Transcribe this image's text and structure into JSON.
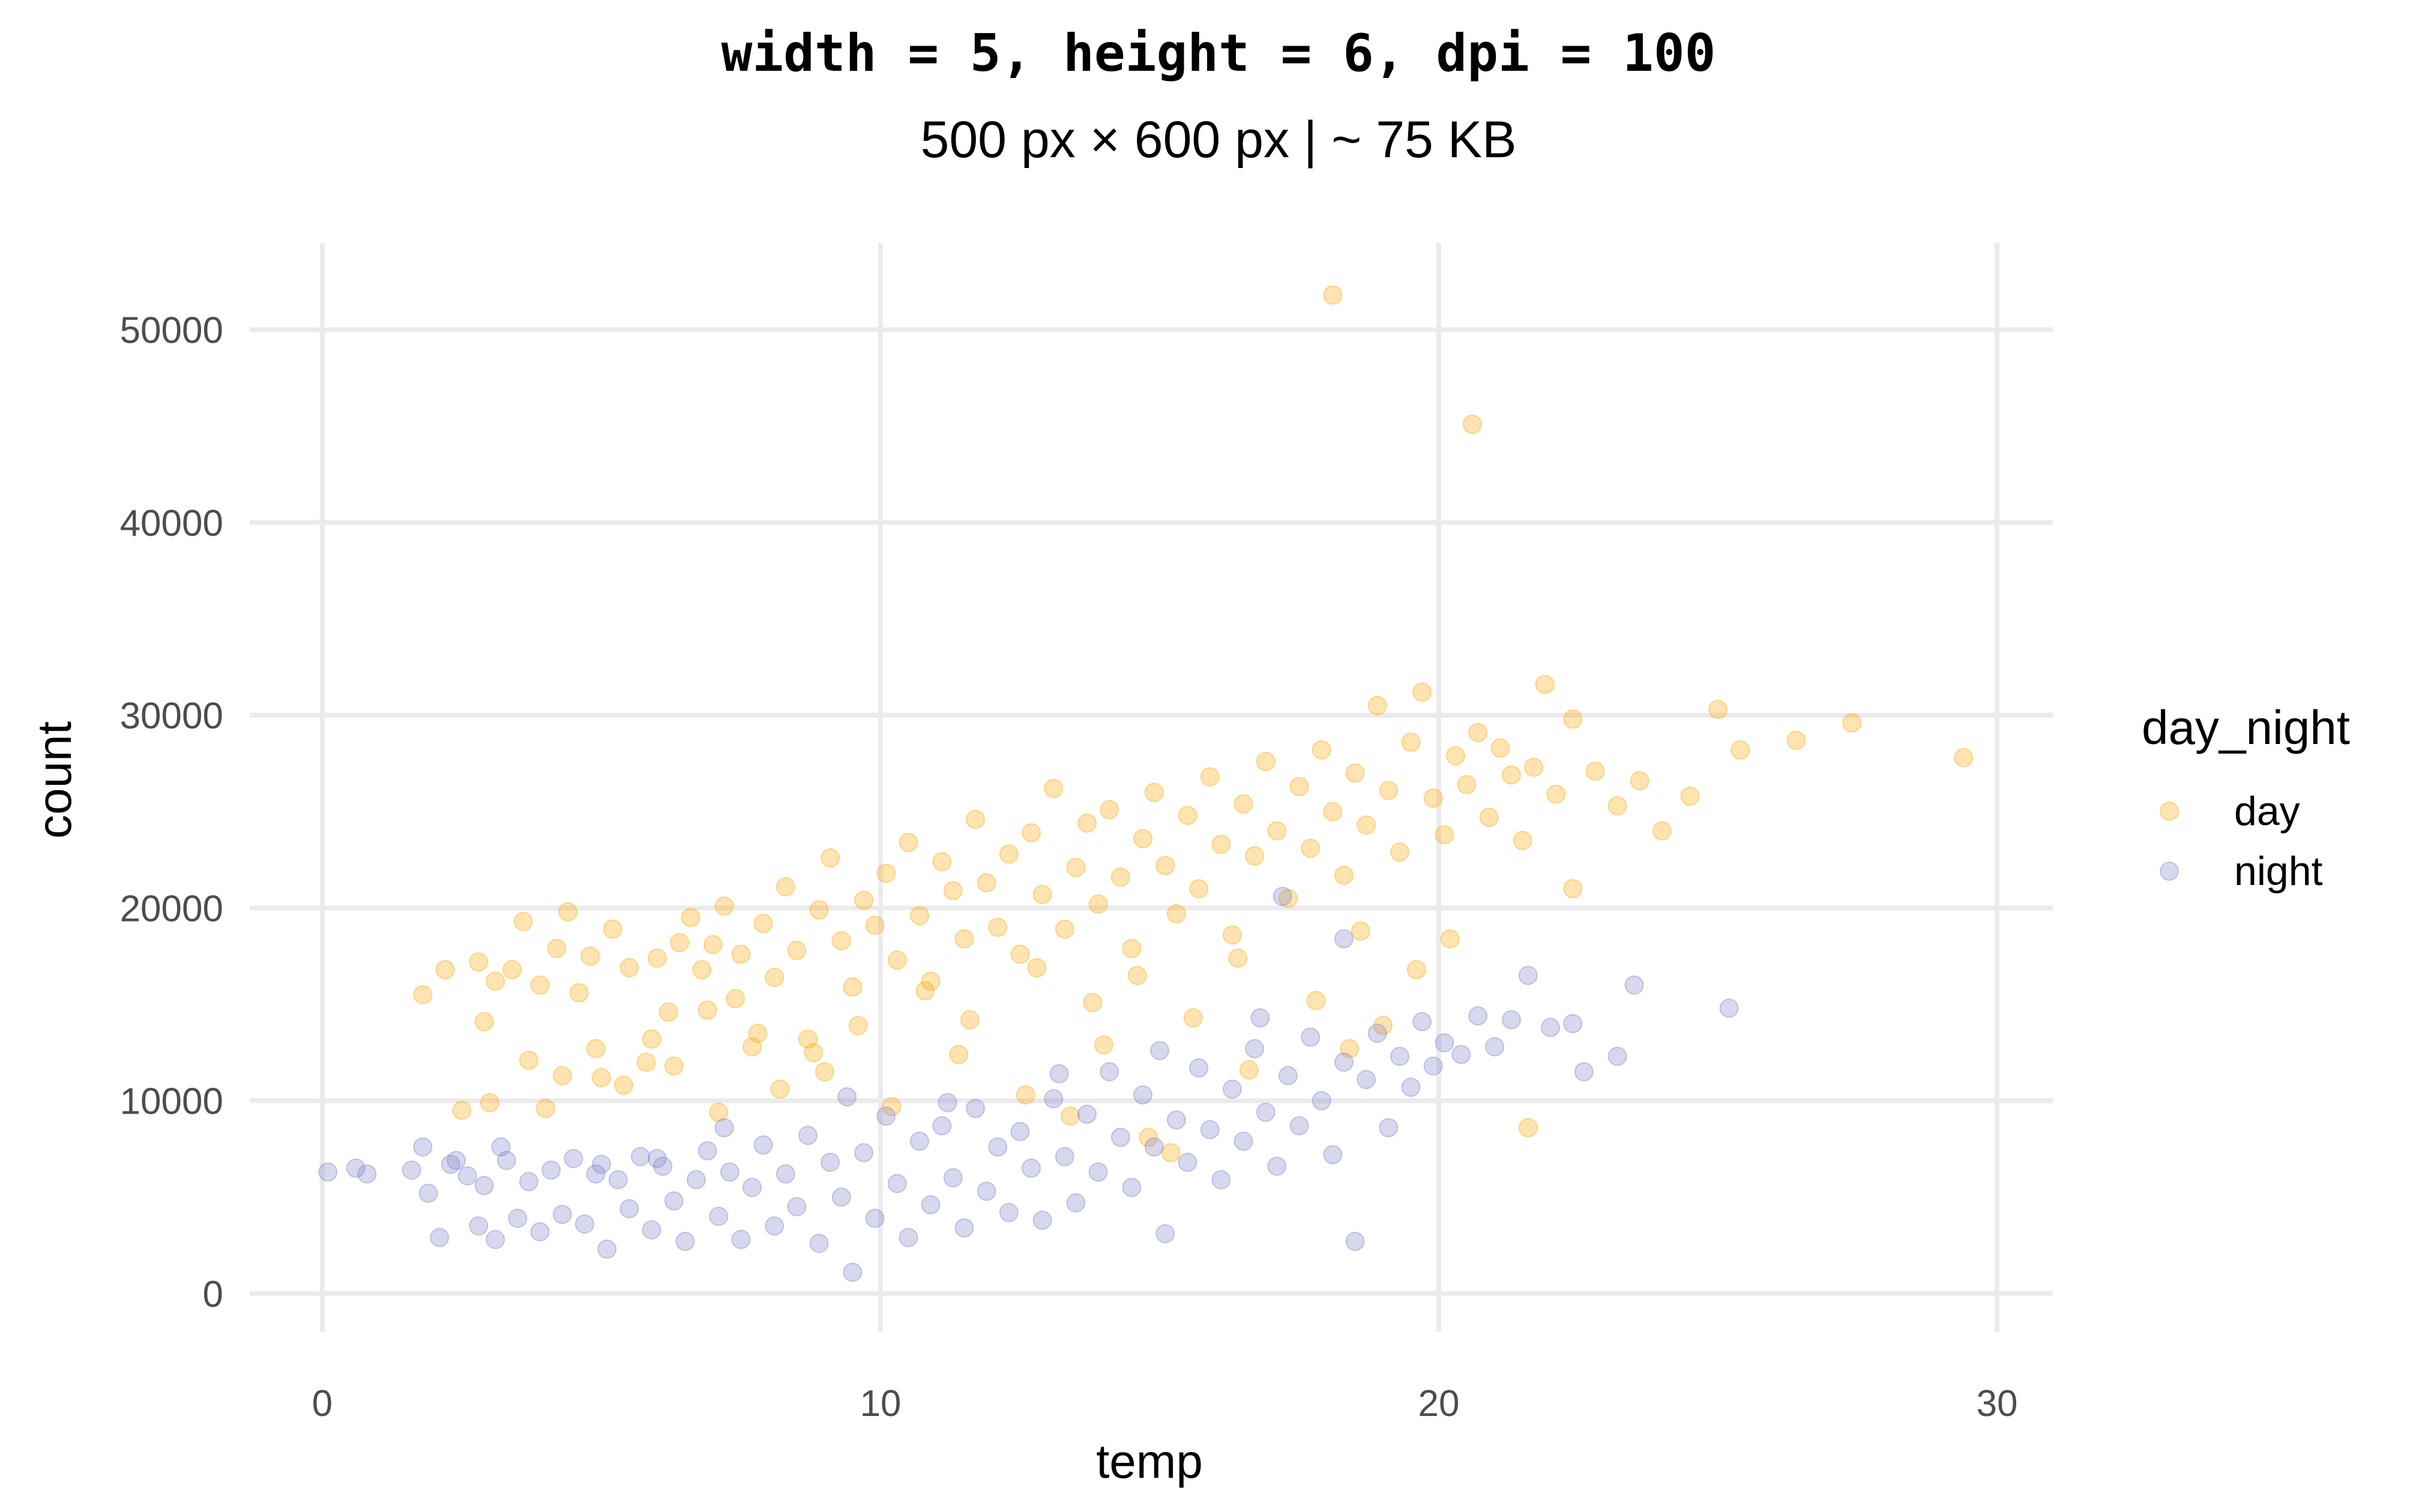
{
  "chart_data": {
    "type": "scatter",
    "title": "width = 5, height = 6, dpi = 100",
    "subtitle": "500 px × 600 px  |  ~ 75 KB",
    "xlabel": "temp",
    "ylabel": "count",
    "xlim": [
      -1.3,
      31
    ],
    "ylim": [
      -2000,
      54500
    ],
    "x_ticks": [
      0,
      10,
      20,
      30
    ],
    "y_ticks": [
      0,
      10000,
      20000,
      30000,
      40000,
      50000
    ],
    "grid": true,
    "legend": {
      "title": "day_night",
      "position": "right",
      "entries": [
        "day",
        "night"
      ]
    },
    "colors": {
      "day": "#FFA500",
      "night": "#7B7FC8"
    },
    "point_alpha": 0.3,
    "series": [
      {
        "name": "day",
        "color": "#FFA500",
        "points": [
          [
            1.8,
            15500
          ],
          [
            2.2,
            16800
          ],
          [
            2.5,
            9500
          ],
          [
            2.8,
            17200
          ],
          [
            2.9,
            14100
          ],
          [
            3.1,
            16200
          ],
          [
            3.4,
            16800
          ],
          [
            3.6,
            19300
          ],
          [
            3.9,
            16000
          ],
          [
            4.2,
            17900
          ],
          [
            4.4,
            19800
          ],
          [
            4.6,
            15600
          ],
          [
            4.8,
            17500
          ],
          [
            5.0,
            11200
          ],
          [
            5.2,
            18900
          ],
          [
            5.5,
            16900
          ],
          [
            5.8,
            12000
          ],
          [
            6.0,
            17400
          ],
          [
            6.2,
            14600
          ],
          [
            6.4,
            18200
          ],
          [
            6.6,
            19500
          ],
          [
            6.8,
            16800
          ],
          [
            7.0,
            18100
          ],
          [
            7.2,
            20100
          ],
          [
            7.4,
            15300
          ],
          [
            7.5,
            17600
          ],
          [
            7.7,
            12800
          ],
          [
            7.9,
            19200
          ],
          [
            8.1,
            16400
          ],
          [
            8.3,
            21100
          ],
          [
            8.5,
            17800
          ],
          [
            8.7,
            13200
          ],
          [
            8.9,
            19900
          ],
          [
            9.1,
            22600
          ],
          [
            9.3,
            18300
          ],
          [
            9.5,
            15900
          ],
          [
            9.7,
            20400
          ],
          [
            9.9,
            19100
          ],
          [
            10.1,
            21800
          ],
          [
            10.3,
            17300
          ],
          [
            10.5,
            23400
          ],
          [
            10.7,
            19600
          ],
          [
            10.9,
            16200
          ],
          [
            11.1,
            22400
          ],
          [
            11.3,
            20900
          ],
          [
            11.5,
            18400
          ],
          [
            11.7,
            24600
          ],
          [
            11.9,
            21300
          ],
          [
            12.1,
            19000
          ],
          [
            12.3,
            22800
          ],
          [
            12.5,
            17600
          ],
          [
            12.7,
            23900
          ],
          [
            12.9,
            20700
          ],
          [
            13.1,
            26200
          ],
          [
            13.3,
            18900
          ],
          [
            13.5,
            22100
          ],
          [
            13.7,
            24400
          ],
          [
            13.9,
            20200
          ],
          [
            14.1,
            25100
          ],
          [
            14.3,
            21600
          ],
          [
            14.5,
            17900
          ],
          [
            14.7,
            23600
          ],
          [
            14.9,
            26000
          ],
          [
            15.1,
            22200
          ],
          [
            15.3,
            19700
          ],
          [
            15.5,
            24800
          ],
          [
            15.7,
            21000
          ],
          [
            15.9,
            26800
          ],
          [
            16.1,
            23300
          ],
          [
            16.3,
            18600
          ],
          [
            16.5,
            25400
          ],
          [
            16.7,
            22700
          ],
          [
            16.9,
            27600
          ],
          [
            17.1,
            24000
          ],
          [
            17.3,
            20500
          ],
          [
            17.5,
            26300
          ],
          [
            17.7,
            23100
          ],
          [
            17.9,
            28200
          ],
          [
            18.1,
            25000
          ],
          [
            18.3,
            21700
          ],
          [
            18.5,
            27000
          ],
          [
            18.7,
            24300
          ],
          [
            18.9,
            30500
          ],
          [
            19.1,
            26100
          ],
          [
            19.3,
            22900
          ],
          [
            19.5,
            28600
          ],
          [
            19.7,
            31200
          ],
          [
            19.9,
            25700
          ],
          [
            20.1,
            23800
          ],
          [
            20.3,
            27900
          ],
          [
            20.5,
            26400
          ],
          [
            20.7,
            29100
          ],
          [
            20.9,
            24700
          ],
          [
            21.1,
            28300
          ],
          [
            21.3,
            26900
          ],
          [
            21.5,
            23500
          ],
          [
            21.7,
            27300
          ],
          [
            21.9,
            31600
          ],
          [
            22.1,
            25900
          ],
          [
            22.4,
            29800
          ],
          [
            22.8,
            27100
          ],
          [
            23.2,
            25300
          ],
          [
            23.6,
            26600
          ],
          [
            24.0,
            24000
          ],
          [
            24.5,
            25800
          ],
          [
            25.0,
            30300
          ],
          [
            25.4,
            28200
          ],
          [
            26.4,
            28700
          ],
          [
            27.4,
            29600
          ],
          [
            29.4,
            27800
          ],
          [
            3.0,
            9900
          ],
          [
            4.0,
            9600
          ],
          [
            5.4,
            10800
          ],
          [
            6.3,
            11800
          ],
          [
            7.1,
            9400
          ],
          [
            8.2,
            10600
          ],
          [
            9.0,
            11500
          ],
          [
            10.2,
            9700
          ],
          [
            11.4,
            12400
          ],
          [
            12.6,
            10300
          ],
          [
            13.4,
            9200
          ],
          [
            14.0,
            12900
          ],
          [
            14.8,
            8100
          ],
          [
            15.2,
            7300
          ],
          [
            16.6,
            11600
          ],
          [
            18.4,
            12700
          ],
          [
            19.0,
            13900
          ],
          [
            21.6,
            8600
          ],
          [
            22.4,
            21000
          ],
          [
            20.2,
            18400
          ],
          [
            19.6,
            16800
          ],
          [
            18.6,
            18800
          ],
          [
            17.8,
            15200
          ],
          [
            16.4,
            17400
          ],
          [
            15.6,
            14300
          ],
          [
            14.6,
            16500
          ],
          [
            13.8,
            15100
          ],
          [
            12.8,
            16900
          ],
          [
            11.6,
            14200
          ],
          [
            10.8,
            15700
          ],
          [
            9.6,
            13900
          ],
          [
            8.8,
            12500
          ],
          [
            7.8,
            13500
          ],
          [
            6.9,
            14700
          ],
          [
            5.9,
            13200
          ],
          [
            4.9,
            12700
          ],
          [
            4.3,
            11300
          ],
          [
            3.7,
            12100
          ],
          [
            18.1,
            51800
          ],
          [
            20.6,
            45100
          ]
        ]
      },
      {
        "name": "night",
        "color": "#7B7FC8",
        "points": [
          [
            0.1,
            6300
          ],
          [
            0.6,
            6500
          ],
          [
            0.8,
            6200
          ],
          [
            1.6,
            6400
          ],
          [
            1.8,
            7600
          ],
          [
            1.9,
            5200
          ],
          [
            2.1,
            2900
          ],
          [
            2.3,
            6700
          ],
          [
            2.6,
            6100
          ],
          [
            2.8,
            3500
          ],
          [
            2.9,
            5600
          ],
          [
            3.1,
            2800
          ],
          [
            3.3,
            6900
          ],
          [
            3.5,
            3900
          ],
          [
            3.7,
            5800
          ],
          [
            3.9,
            3200
          ],
          [
            4.1,
            6400
          ],
          [
            4.3,
            4100
          ],
          [
            4.5,
            7000
          ],
          [
            4.7,
            3600
          ],
          [
            4.9,
            6200
          ],
          [
            5.1,
            2300
          ],
          [
            5.3,
            5900
          ],
          [
            5.5,
            4400
          ],
          [
            5.7,
            7100
          ],
          [
            5.9,
            3300
          ],
          [
            6.1,
            6600
          ],
          [
            6.3,
            4800
          ],
          [
            6.5,
            2700
          ],
          [
            6.7,
            5900
          ],
          [
            6.9,
            7400
          ],
          [
            7.1,
            4000
          ],
          [
            7.3,
            6300
          ],
          [
            7.5,
            2800
          ],
          [
            7.7,
            5500
          ],
          [
            7.9,
            7700
          ],
          [
            8.1,
            3500
          ],
          [
            8.3,
            6200
          ],
          [
            8.5,
            4500
          ],
          [
            8.7,
            8200
          ],
          [
            8.9,
            2600
          ],
          [
            9.1,
            6800
          ],
          [
            9.3,
            5000
          ],
          [
            9.5,
            1100
          ],
          [
            9.7,
            7300
          ],
          [
            9.9,
            3900
          ],
          [
            10.1,
            9200
          ],
          [
            10.3,
            5700
          ],
          [
            10.5,
            2900
          ],
          [
            10.7,
            7900
          ],
          [
            10.9,
            4600
          ],
          [
            11.1,
            8700
          ],
          [
            11.3,
            6000
          ],
          [
            11.5,
            3400
          ],
          [
            11.7,
            9600
          ],
          [
            11.9,
            5300
          ],
          [
            12.1,
            7600
          ],
          [
            12.3,
            4200
          ],
          [
            12.5,
            8400
          ],
          [
            12.7,
            6500
          ],
          [
            12.9,
            3800
          ],
          [
            13.1,
            10100
          ],
          [
            13.3,
            7100
          ],
          [
            13.5,
            4700
          ],
          [
            13.7,
            9300
          ],
          [
            13.9,
            6300
          ],
          [
            14.1,
            11500
          ],
          [
            14.3,
            8100
          ],
          [
            14.5,
            5500
          ],
          [
            14.7,
            10300
          ],
          [
            14.9,
            7600
          ],
          [
            15.1,
            3100
          ],
          [
            15.3,
            9000
          ],
          [
            15.5,
            6800
          ],
          [
            15.7,
            11700
          ],
          [
            15.9,
            8500
          ],
          [
            16.1,
            5900
          ],
          [
            16.3,
            10600
          ],
          [
            16.5,
            7900
          ],
          [
            16.7,
            12700
          ],
          [
            16.9,
            9400
          ],
          [
            17.1,
            6600
          ],
          [
            17.3,
            11300
          ],
          [
            17.5,
            8700
          ],
          [
            17.7,
            13300
          ],
          [
            17.9,
            10000
          ],
          [
            18.1,
            7200
          ],
          [
            18.3,
            12000
          ],
          [
            18.5,
            2700
          ],
          [
            18.7,
            11100
          ],
          [
            18.9,
            13500
          ],
          [
            19.1,
            8600
          ],
          [
            19.3,
            12300
          ],
          [
            19.5,
            10700
          ],
          [
            19.7,
            14100
          ],
          [
            19.9,
            11800
          ],
          [
            20.1,
            13000
          ],
          [
            20.4,
            12400
          ],
          [
            20.7,
            14400
          ],
          [
            21.0,
            12800
          ],
          [
            21.3,
            14200
          ],
          [
            21.6,
            16500
          ],
          [
            22.0,
            13800
          ],
          [
            22.4,
            14000
          ],
          [
            22.6,
            11500
          ],
          [
            23.2,
            12300
          ],
          [
            23.5,
            16000
          ],
          [
            25.2,
            14800
          ],
          [
            17.2,
            20600
          ],
          [
            18.3,
            18400
          ],
          [
            3.2,
            7600
          ],
          [
            5.0,
            6700
          ],
          [
            7.2,
            8600
          ],
          [
            9.4,
            10200
          ],
          [
            11.2,
            9900
          ],
          [
            13.2,
            11400
          ],
          [
            15.0,
            12600
          ],
          [
            16.8,
            14300
          ],
          [
            2.4,
            6900
          ],
          [
            6.0,
            7000
          ]
        ]
      }
    ]
  }
}
